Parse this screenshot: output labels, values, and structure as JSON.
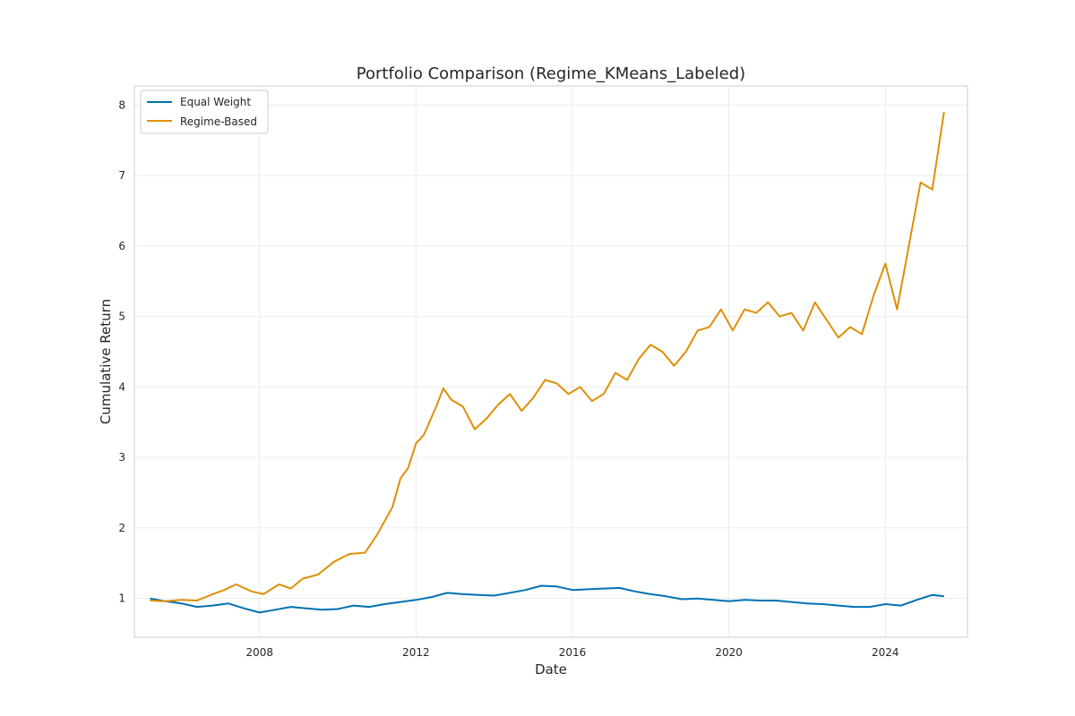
{
  "chart_data": {
    "type": "line",
    "title": "Portfolio Comparison (Regime_KMeans_Labeled)",
    "xlabel": "Date",
    "ylabel": "Cumulative Return",
    "xlim": [
      2004.8,
      2026.1
    ],
    "ylim": [
      0.45,
      8.27
    ],
    "xticks": [
      2008,
      2012,
      2016,
      2020,
      2024
    ],
    "yticks": [
      1,
      2,
      3,
      4,
      5,
      6,
      7,
      8
    ],
    "grid": true,
    "legend": "top-left",
    "series": [
      {
        "name": "Equal Weight",
        "color": "#0072b2",
        "x": [
          2005.2,
          2005.6,
          2006.0,
          2006.4,
          2006.8,
          2007.2,
          2007.6,
          2008.0,
          2008.4,
          2008.8,
          2009.2,
          2009.6,
          2010.0,
          2010.4,
          2010.8,
          2011.2,
          2011.6,
          2012.0,
          2012.4,
          2012.8,
          2013.2,
          2013.6,
          2014.0,
          2014.4,
          2014.8,
          2015.2,
          2015.6,
          2016.0,
          2016.4,
          2016.8,
          2017.2,
          2017.6,
          2018.0,
          2018.4,
          2018.8,
          2019.2,
          2019.6,
          2020.0,
          2020.4,
          2020.8,
          2021.2,
          2021.6,
          2022.0,
          2022.4,
          2022.8,
          2023.2,
          2023.6,
          2024.0,
          2024.4,
          2024.8,
          2025.2,
          2025.5
        ],
        "values": [
          1.0,
          0.96,
          0.93,
          0.88,
          0.9,
          0.93,
          0.86,
          0.8,
          0.84,
          0.88,
          0.86,
          0.84,
          0.85,
          0.9,
          0.88,
          0.92,
          0.95,
          0.98,
          1.02,
          1.08,
          1.06,
          1.05,
          1.04,
          1.08,
          1.12,
          1.18,
          1.17,
          1.12,
          1.13,
          1.14,
          1.15,
          1.1,
          1.06,
          1.03,
          0.99,
          1.0,
          0.98,
          0.96,
          0.98,
          0.97,
          0.97,
          0.95,
          0.93,
          0.92,
          0.9,
          0.88,
          0.88,
          0.92,
          0.9,
          0.98,
          1.05,
          1.03
        ]
      },
      {
        "name": "Regime-Based",
        "color": "#de8f05",
        "x": [
          2005.2,
          2005.6,
          2006.0,
          2006.4,
          2006.8,
          2007.1,
          2007.4,
          2007.8,
          2008.1,
          2008.5,
          2008.8,
          2009.1,
          2009.5,
          2009.9,
          2010.3,
          2010.7,
          2011.0,
          2011.4,
          2011.6,
          2011.8,
          2012.0,
          2012.2,
          2012.5,
          2012.7,
          2012.9,
          2013.2,
          2013.5,
          2013.8,
          2014.1,
          2014.4,
          2014.7,
          2015.0,
          2015.3,
          2015.6,
          2015.9,
          2016.2,
          2016.5,
          2016.8,
          2017.1,
          2017.4,
          2017.7,
          2018.0,
          2018.3,
          2018.6,
          2018.9,
          2019.2,
          2019.5,
          2019.8,
          2020.1,
          2020.4,
          2020.7,
          2021.0,
          2021.3,
          2021.6,
          2021.9,
          2022.2,
          2022.5,
          2022.8,
          2023.1,
          2023.4,
          2023.7,
          2024.0,
          2024.3,
          2024.6,
          2024.9,
          2025.2,
          2025.5
        ],
        "values": [
          0.97,
          0.96,
          0.98,
          0.97,
          1.06,
          1.12,
          1.2,
          1.1,
          1.06,
          1.2,
          1.14,
          1.28,
          1.34,
          1.52,
          1.63,
          1.65,
          1.9,
          2.3,
          2.7,
          2.85,
          3.2,
          3.32,
          3.7,
          3.98,
          3.82,
          3.72,
          3.4,
          3.55,
          3.75,
          3.9,
          3.66,
          3.85,
          4.1,
          4.05,
          3.9,
          4.0,
          3.8,
          3.9,
          4.2,
          4.1,
          4.4,
          4.6,
          4.5,
          4.3,
          4.5,
          4.8,
          4.85,
          5.1,
          4.8,
          5.1,
          5.05,
          5.2,
          5.0,
          5.05,
          4.8,
          5.2,
          4.95,
          4.7,
          4.85,
          4.75,
          5.3,
          5.75,
          5.1,
          6.0,
          6.9,
          6.8,
          7.9
        ]
      }
    ]
  }
}
